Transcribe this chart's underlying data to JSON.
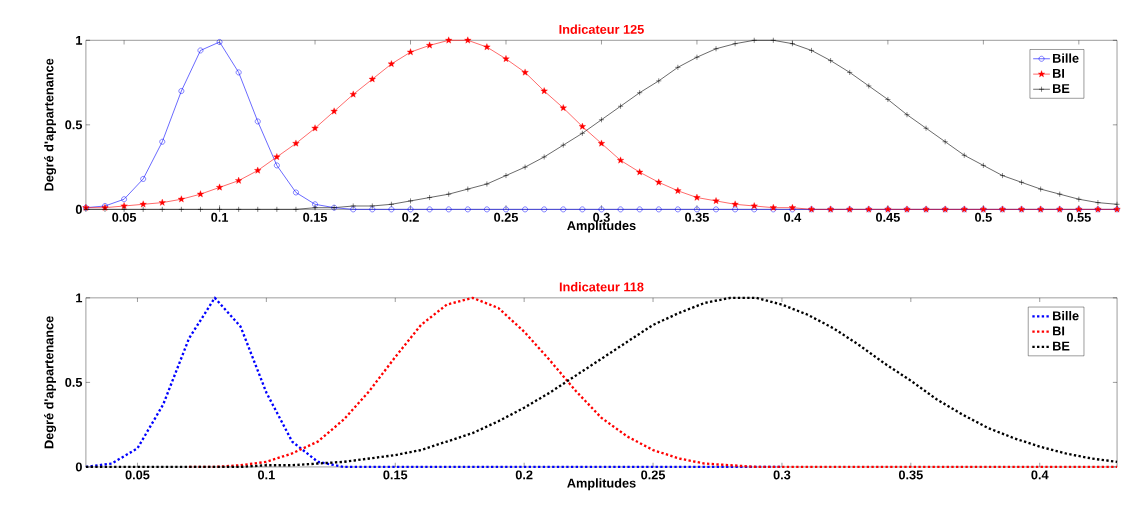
{
  "chart_data": [
    {
      "type": "line",
      "title": "Indicateur 125",
      "xlabel": "Amplitudes",
      "ylabel": "Degré d'appartenance",
      "legend": "top right",
      "xlim": [
        0.03,
        0.57
      ],
      "ylim": [
        0,
        1
      ],
      "xticks": [
        0.05,
        0.1,
        0.15,
        0.2,
        0.25,
        0.3,
        0.35,
        0.4,
        0.45,
        0.5,
        0.55
      ],
      "yticks": [
        0,
        0.5,
        1
      ],
      "x": [
        0.03,
        0.04,
        0.05,
        0.06,
        0.07,
        0.08,
        0.09,
        0.1,
        0.11,
        0.12,
        0.13,
        0.14,
        0.15,
        0.16,
        0.17,
        0.18,
        0.19,
        0.2,
        0.21,
        0.22,
        0.23,
        0.24,
        0.25,
        0.26,
        0.27,
        0.28,
        0.29,
        0.3,
        0.31,
        0.32,
        0.33,
        0.34,
        0.35,
        0.36,
        0.37,
        0.38,
        0.39,
        0.4,
        0.41,
        0.42,
        0.43,
        0.44,
        0.45,
        0.46,
        0.47,
        0.48,
        0.49,
        0.5,
        0.51,
        0.52,
        0.53,
        0.54,
        0.55,
        0.56,
        0.57
      ],
      "series": [
        {
          "name": "Bille",
          "color": "#0000ff",
          "marker": "circle",
          "line_style": "solid",
          "values": [
            0.01,
            0.02,
            0.06,
            0.18,
            0.4,
            0.7,
            0.94,
            0.99,
            0.81,
            0.52,
            0.26,
            0.1,
            0.03,
            0.01,
            0,
            0,
            0,
            0,
            0,
            0,
            0,
            0,
            0,
            0,
            0,
            0,
            0,
            0,
            0,
            0,
            0,
            0,
            0,
            0,
            0,
            0,
            0,
            0,
            0,
            0,
            0,
            0,
            0,
            0,
            0,
            0,
            0,
            0,
            0,
            0,
            0,
            0,
            0,
            0,
            0
          ]
        },
        {
          "name": "BI",
          "color": "#ff0000",
          "marker": "star",
          "line_style": "solid",
          "values": [
            0.01,
            0.01,
            0.02,
            0.03,
            0.04,
            0.06,
            0.09,
            0.13,
            0.17,
            0.23,
            0.31,
            0.39,
            0.48,
            0.58,
            0.68,
            0.77,
            0.86,
            0.93,
            0.97,
            1.0,
            1.0,
            0.96,
            0.89,
            0.81,
            0.7,
            0.6,
            0.49,
            0.39,
            0.29,
            0.22,
            0.16,
            0.11,
            0.07,
            0.05,
            0.03,
            0.02,
            0.01,
            0.01,
            0,
            0,
            0,
            0,
            0,
            0,
            0,
            0,
            0,
            0,
            0,
            0,
            0,
            0,
            0,
            0,
            0
          ]
        },
        {
          "name": "BE",
          "color": "#000000",
          "marker": "cross",
          "line_style": "solid",
          "values": [
            0,
            0,
            0,
            0,
            0,
            0,
            0,
            0,
            0,
            0,
            0,
            0,
            0.01,
            0.01,
            0.02,
            0.02,
            0.03,
            0.05,
            0.07,
            0.09,
            0.12,
            0.15,
            0.2,
            0.25,
            0.31,
            0.38,
            0.45,
            0.53,
            0.61,
            0.69,
            0.76,
            0.84,
            0.9,
            0.95,
            0.98,
            1.0,
            1.0,
            0.98,
            0.94,
            0.88,
            0.81,
            0.73,
            0.65,
            0.56,
            0.48,
            0.4,
            0.32,
            0.26,
            0.2,
            0.16,
            0.12,
            0.09,
            0.06,
            0.04,
            0.03
          ]
        }
      ]
    },
    {
      "type": "line",
      "title": "Indicateur 118",
      "xlabel": "Amplitudes",
      "ylabel": "Degré d'appartenance",
      "legend": "top right",
      "xlim": [
        0.03,
        0.43
      ],
      "ylim": [
        0,
        1
      ],
      "xticks": [
        0.05,
        0.1,
        0.15,
        0.2,
        0.25,
        0.3,
        0.35,
        0.4
      ],
      "yticks": [
        0,
        0.5,
        1
      ],
      "x": [
        0.03,
        0.04,
        0.05,
        0.06,
        0.07,
        0.08,
        0.09,
        0.1,
        0.11,
        0.12,
        0.13,
        0.14,
        0.15,
        0.16,
        0.17,
        0.18,
        0.19,
        0.2,
        0.21,
        0.22,
        0.23,
        0.24,
        0.25,
        0.26,
        0.27,
        0.28,
        0.29,
        0.3,
        0.31,
        0.32,
        0.33,
        0.34,
        0.35,
        0.36,
        0.37,
        0.38,
        0.39,
        0.4,
        0.41,
        0.42,
        0.43
      ],
      "series": [
        {
          "name": "Bille",
          "color": "#0000ff",
          "marker": "none",
          "line_style": "dotted",
          "values": [
            0,
            0.02,
            0.11,
            0.37,
            0.76,
            1.0,
            0.83,
            0.44,
            0.15,
            0.03,
            0,
            0,
            0,
            0,
            0,
            0,
            0,
            0,
            0,
            0,
            0,
            0,
            0,
            0,
            0,
            0,
            0,
            0,
            null,
            null,
            null,
            null,
            null,
            null,
            null,
            null,
            null,
            null,
            null,
            null,
            null
          ]
        },
        {
          "name": "BI",
          "color": "#ff0000",
          "marker": "none",
          "line_style": "dotted",
          "values": [
            null,
            null,
            null,
            null,
            0,
            0,
            0.01,
            0.03,
            0.08,
            0.15,
            0.28,
            0.45,
            0.65,
            0.84,
            0.96,
            1.0,
            0.94,
            0.8,
            0.63,
            0.45,
            0.29,
            0.18,
            0.1,
            0.05,
            0.02,
            0.01,
            0,
            0,
            0,
            0,
            0,
            0,
            0,
            0,
            0,
            0,
            0,
            0,
            0,
            0,
            0
          ]
        },
        {
          "name": "BE",
          "color": "#000000",
          "marker": "none",
          "line_style": "dotted",
          "values": [
            0,
            0,
            0,
            0,
            0,
            0,
            0,
            0.01,
            0.01,
            0.02,
            0.03,
            0.05,
            0.07,
            0.1,
            0.15,
            0.2,
            0.27,
            0.35,
            0.44,
            0.54,
            0.64,
            0.74,
            0.84,
            0.91,
            0.97,
            1.0,
            1.0,
            0.96,
            0.9,
            0.82,
            0.72,
            0.61,
            0.51,
            0.4,
            0.31,
            0.23,
            0.17,
            0.12,
            0.08,
            0.05,
            0.03
          ]
        }
      ]
    }
  ]
}
